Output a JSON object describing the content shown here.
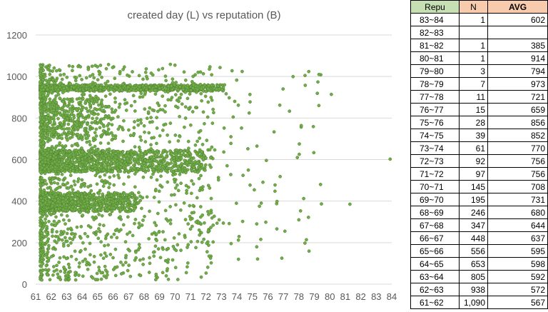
{
  "chart_data": {
    "type": "scatter",
    "title": "created day (L) vs reputation (B)",
    "xlabel": "",
    "ylabel": "",
    "xlim": [
      61,
      84
    ],
    "ylim": [
      0,
      1200
    ],
    "x_ticks": [
      61,
      62,
      63,
      64,
      65,
      66,
      67,
      68,
      69,
      70,
      71,
      72,
      73,
      74,
      75,
      76,
      77,
      78,
      79,
      80,
      81,
      82,
      83,
      84
    ],
    "y_ticks": [
      0,
      200,
      400,
      600,
      800,
      1000,
      1200
    ],
    "grid": "horizontal",
    "marker_color": "#70ad47",
    "marker_edge_color": "#4f7d31",
    "point_clusters": [
      {
        "x_range": [
          61.3,
          73.2
        ],
        "y_range": [
          930,
          960
        ],
        "count": 800,
        "skew": 1.6
      },
      {
        "x_range": [
          61.3,
          72.0
        ],
        "y_range": [
          540,
          645
        ],
        "count": 1100,
        "skew": 1.8
      },
      {
        "x_range": [
          61.3,
          67.5
        ],
        "y_range": [
          350,
          440
        ],
        "count": 700,
        "skew": 1.5
      },
      {
        "x_range": [
          61.3,
          66.0
        ],
        "y_range": [
          700,
          900
        ],
        "count": 300,
        "skew": 1.5
      },
      {
        "x_range": [
          61.3,
          72.5
        ],
        "y_range": [
          20,
          1060
        ],
        "count": 1500,
        "skew": 2.2
      },
      {
        "x_range": [
          71.0,
          79.5
        ],
        "y_range": [
          120,
          1050
        ],
        "count": 110,
        "skew": 1.4
      }
    ],
    "outliers": [
      {
        "x": 83.9,
        "y": 602
      },
      {
        "x": 81.3,
        "y": 385
      },
      {
        "x": 80.1,
        "y": 914
      },
      {
        "x": 79.3,
        "y": 1010
      },
      {
        "x": 79.4,
        "y": 480
      },
      {
        "x": 78.4,
        "y": 1005
      },
      {
        "x": 77.9,
        "y": 610
      },
      {
        "x": 77.1,
        "y": 255
      },
      {
        "x": 76.9,
        "y": 125
      },
      {
        "x": 74.1,
        "y": 120
      },
      {
        "x": 72.2,
        "y": 135
      }
    ]
  },
  "table": {
    "headers": {
      "repu": "Repu",
      "n": "N",
      "avg": "AVG"
    },
    "rows": [
      {
        "repu": "83~84",
        "n": "1",
        "avg": "602"
      },
      {
        "repu": "82~83",
        "n": "",
        "avg": ""
      },
      {
        "repu": "81~82",
        "n": "1",
        "avg": "385"
      },
      {
        "repu": "80~81",
        "n": "1",
        "avg": "914"
      },
      {
        "repu": "79~80",
        "n": "3",
        "avg": "794"
      },
      {
        "repu": "78~79",
        "n": "7",
        "avg": "973"
      },
      {
        "repu": "77~78",
        "n": "11",
        "avg": "721"
      },
      {
        "repu": "76~77",
        "n": "15",
        "avg": "659"
      },
      {
        "repu": "75~76",
        "n": "28",
        "avg": "856"
      },
      {
        "repu": "74~75",
        "n": "39",
        "avg": "852"
      },
      {
        "repu": "73~74",
        "n": "61",
        "avg": "770"
      },
      {
        "repu": "72~73",
        "n": "92",
        "avg": "756"
      },
      {
        "repu": "71~72",
        "n": "97",
        "avg": "756"
      },
      {
        "repu": "70~71",
        "n": "145",
        "avg": "708"
      },
      {
        "repu": "69~70",
        "n": "195",
        "avg": "731"
      },
      {
        "repu": "68~69",
        "n": "246",
        "avg": "680"
      },
      {
        "repu": "67~68",
        "n": "347",
        "avg": "644"
      },
      {
        "repu": "66~67",
        "n": "448",
        "avg": "637"
      },
      {
        "repu": "65~66",
        "n": "556",
        "avg": "595"
      },
      {
        "repu": "64~65",
        "n": "653",
        "avg": "598"
      },
      {
        "repu": "63~64",
        "n": "805",
        "avg": "592"
      },
      {
        "repu": "62~63",
        "n": "938",
        "avg": "572"
      },
      {
        "repu": "61~62",
        "n": "1,090",
        "avg": "567"
      }
    ]
  }
}
